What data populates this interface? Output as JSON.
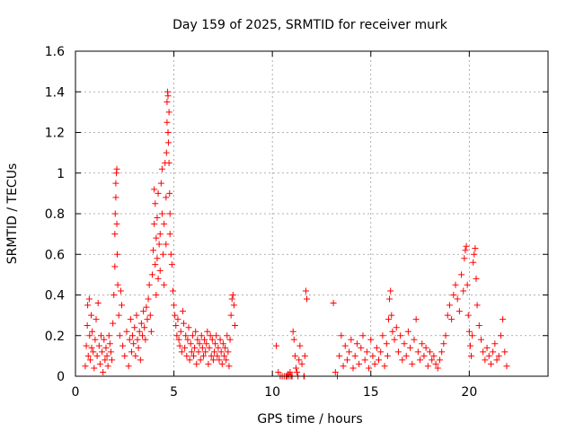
{
  "chart_data": {
    "type": "scatter",
    "title": "Day 159 of 2025, SRMTID for receiver murk",
    "xlabel": "GPS time / hours",
    "ylabel": "SRMTID / TECUs",
    "xlim": [
      0,
      24
    ],
    "ylim": [
      0,
      1.6
    ],
    "grid": true,
    "marker": "+",
    "marker_color": "#ff0000",
    "xticks": [
      {
        "value": 0,
        "label": "0"
      },
      {
        "value": 5,
        "label": "5"
      },
      {
        "value": 10,
        "label": "10"
      },
      {
        "value": 15,
        "label": "15"
      },
      {
        "value": 20,
        "label": "20"
      }
    ],
    "yticks": [
      {
        "value": 0,
        "label": "0"
      },
      {
        "value": 0.2,
        "label": "0.2"
      },
      {
        "value": 0.4,
        "label": "0.4"
      },
      {
        "value": 0.6,
        "label": "0.6"
      },
      {
        "value": 0.8,
        "label": "0.8"
      },
      {
        "value": 1.0,
        "label": "1"
      },
      {
        "value": 1.2,
        "label": "1.2"
      },
      {
        "value": 1.4,
        "label": "1.4"
      },
      {
        "value": 1.6,
        "label": "1.6"
      }
    ],
    "series": [
      {
        "name": "SRMTID",
        "x": [
          0.5,
          0.55,
          0.6,
          0.62,
          0.65,
          0.7,
          0.72,
          0.75,
          0.8,
          0.82,
          0.85,
          0.9,
          0.95,
          1.0,
          1.05,
          1.1,
          1.15,
          1.2,
          1.25,
          1.3,
          1.35,
          1.4,
          1.45,
          1.5,
          1.55,
          1.6,
          1.65,
          1.7,
          1.75,
          1.8,
          1.85,
          1.9,
          1.95,
          2.0,
          2.0,
          2.02,
          2.05,
          2.05,
          2.08,
          2.1,
          2.1,
          2.12,
          2.15,
          2.2,
          2.25,
          2.3,
          2.35,
          2.4,
          2.5,
          2.6,
          2.7,
          2.75,
          2.8,
          2.85,
          2.9,
          2.95,
          3.0,
          3.05,
          3.1,
          3.15,
          3.2,
          3.25,
          3.3,
          3.35,
          3.4,
          3.45,
          3.5,
          3.55,
          3.6,
          3.65,
          3.7,
          3.75,
          3.8,
          3.85,
          3.9,
          3.95,
          4.0,
          4.0,
          4.05,
          4.05,
          4.1,
          4.1,
          4.15,
          4.15,
          4.2,
          4.2,
          4.25,
          4.3,
          4.3,
          4.35,
          4.4,
          4.4,
          4.45,
          4.5,
          4.5,
          4.55,
          4.6,
          4.6,
          4.62,
          4.65,
          4.65,
          4.68,
          4.7,
          4.7,
          4.72,
          4.75,
          4.75,
          4.78,
          4.8,
          4.8,
          4.85,
          4.9,
          4.95,
          5.0,
          5.05,
          5.1,
          5.15,
          5.2,
          5.25,
          5.3,
          5.35,
          5.4,
          5.45,
          5.5,
          5.55,
          5.6,
          5.65,
          5.7,
          5.75,
          5.8,
          5.85,
          5.9,
          5.95,
          6.0,
          6.05,
          6.1,
          6.15,
          6.2,
          6.25,
          6.3,
          6.35,
          6.4,
          6.45,
          6.5,
          6.55,
          6.6,
          6.65,
          6.7,
          6.75,
          6.8,
          6.85,
          6.9,
          6.95,
          7.0,
          7.05,
          7.1,
          7.15,
          7.2,
          7.25,
          7.3,
          7.35,
          7.4,
          7.45,
          7.5,
          7.55,
          7.6,
          7.65,
          7.7,
          7.75,
          7.8,
          7.85,
          7.9,
          7.95,
          8.0,
          8.05,
          8.1,
          10.2,
          10.3,
          10.4,
          10.5,
          10.6,
          10.7,
          10.75,
          10.8,
          10.85,
          10.9,
          10.95,
          11.0,
          11.05,
          11.1,
          11.15,
          11.2,
          11.25,
          11.3,
          11.35,
          11.4,
          11.5,
          11.6,
          11.62,
          11.65,
          11.7,
          11.75,
          13.1,
          13.2,
          13.3,
          13.4,
          13.5,
          13.6,
          13.7,
          13.8,
          13.9,
          14.0,
          14.1,
          14.2,
          14.3,
          14.4,
          14.5,
          14.6,
          14.7,
          14.8,
          14.9,
          15.0,
          15.1,
          15.2,
          15.3,
          15.4,
          15.5,
          15.6,
          15.7,
          15.8,
          15.85,
          15.9,
          15.95,
          16.0,
          16.05,
          16.1,
          16.2,
          16.3,
          16.4,
          16.5,
          16.6,
          16.7,
          16.8,
          16.9,
          17.0,
          17.1,
          17.2,
          17.3,
          17.4,
          17.5,
          17.6,
          17.7,
          17.8,
          17.9,
          18.0,
          18.1,
          18.2,
          18.3,
          18.4,
          18.5,
          18.6,
          18.7,
          18.8,
          18.9,
          19.0,
          19.1,
          19.2,
          19.3,
          19.4,
          19.5,
          19.6,
          19.7,
          19.75,
          19.8,
          19.85,
          19.9,
          19.95,
          20.0,
          20.05,
          20.1,
          20.15,
          20.2,
          20.25,
          20.3,
          20.35,
          20.4,
          20.5,
          20.6,
          20.7,
          20.8,
          20.9,
          21.0,
          21.1,
          21.2,
          21.3,
          21.4,
          21.5,
          21.6,
          21.7,
          21.8,
          21.9
        ],
        "y": [
          0.05,
          0.15,
          0.25,
          0.35,
          0.1,
          0.38,
          0.2,
          0.08,
          0.3,
          0.14,
          0.22,
          0.12,
          0.04,
          0.18,
          0.28,
          0.1,
          0.36,
          0.15,
          0.06,
          0.2,
          0.12,
          0.02,
          0.18,
          0.08,
          0.14,
          0.1,
          0.05,
          0.2,
          0.16,
          0.12,
          0.08,
          0.26,
          0.4,
          0.54,
          0.7,
          0.8,
          0.88,
          0.95,
          1.0,
          1.02,
          0.75,
          0.6,
          0.45,
          0.3,
          0.2,
          0.42,
          0.35,
          0.15,
          0.1,
          0.22,
          0.05,
          0.18,
          0.28,
          0.12,
          0.2,
          0.16,
          0.24,
          0.1,
          0.3,
          0.18,
          0.14,
          0.22,
          0.08,
          0.26,
          0.2,
          0.32,
          0.24,
          0.18,
          0.34,
          0.28,
          0.38,
          0.45,
          0.3,
          0.22,
          0.5,
          0.62,
          0.75,
          0.92,
          0.55,
          0.85,
          0.68,
          0.4,
          0.78,
          0.58,
          0.48,
          0.9,
          0.65,
          0.7,
          0.52,
          0.95,
          1.02,
          0.8,
          0.6,
          0.75,
          0.45,
          1.05,
          0.88,
          0.65,
          1.1,
          1.25,
          1.35,
          1.4,
          1.38,
          1.2,
          1.15,
          1.3,
          1.05,
          0.9,
          0.8,
          0.7,
          0.6,
          0.55,
          0.42,
          0.35,
          0.3,
          0.25,
          0.2,
          0.28,
          0.18,
          0.15,
          0.22,
          0.12,
          0.32,
          0.26,
          0.14,
          0.2,
          0.1,
          0.18,
          0.24,
          0.08,
          0.16,
          0.12,
          0.2,
          0.1,
          0.14,
          0.22,
          0.06,
          0.18,
          0.12,
          0.16,
          0.08,
          0.2,
          0.14,
          0.1,
          0.18,
          0.12,
          0.16,
          0.22,
          0.06,
          0.14,
          0.2,
          0.1,
          0.18,
          0.08,
          0.12,
          0.16,
          0.2,
          0.1,
          0.14,
          0.08,
          0.18,
          0.12,
          0.06,
          0.16,
          0.1,
          0.14,
          0.08,
          0.2,
          0.12,
          0.05,
          0.18,
          0.3,
          0.38,
          0.4,
          0.35,
          0.25,
          0.15,
          0.02,
          0.0,
          0.0,
          0.0,
          0.0,
          0.0,
          0.01,
          0.0,
          0.02,
          0.0,
          0.0,
          0.22,
          0.18,
          0.1,
          0.04,
          0.02,
          0.0,
          0.08,
          0.15,
          0.06,
          0.0,
          0.0,
          0.1,
          0.42,
          0.38,
          0.36,
          0.02,
          0.0,
          0.1,
          0.2,
          0.05,
          0.15,
          0.08,
          0.12,
          0.18,
          0.04,
          0.1,
          0.16,
          0.06,
          0.14,
          0.2,
          0.08,
          0.12,
          0.04,
          0.18,
          0.1,
          0.06,
          0.14,
          0.08,
          0.12,
          0.2,
          0.05,
          0.16,
          0.1,
          0.28,
          0.38,
          0.42,
          0.3,
          0.22,
          0.18,
          0.24,
          0.12,
          0.2,
          0.08,
          0.16,
          0.1,
          0.22,
          0.14,
          0.06,
          0.18,
          0.28,
          0.12,
          0.08,
          0.16,
          0.1,
          0.14,
          0.05,
          0.12,
          0.08,
          0.1,
          0.06,
          0.04,
          0.08,
          0.12,
          0.16,
          0.2,
          0.3,
          0.35,
          0.28,
          0.4,
          0.45,
          0.38,
          0.32,
          0.5,
          0.42,
          0.58,
          0.62,
          0.64,
          0.45,
          0.3,
          0.22,
          0.15,
          0.1,
          0.2,
          0.56,
          0.6,
          0.63,
          0.48,
          0.35,
          0.25,
          0.18,
          0.12,
          0.08,
          0.14,
          0.1,
          0.06,
          0.12,
          0.16,
          0.08,
          0.1,
          0.2,
          0.28,
          0.12,
          0.05
        ]
      }
    ]
  }
}
